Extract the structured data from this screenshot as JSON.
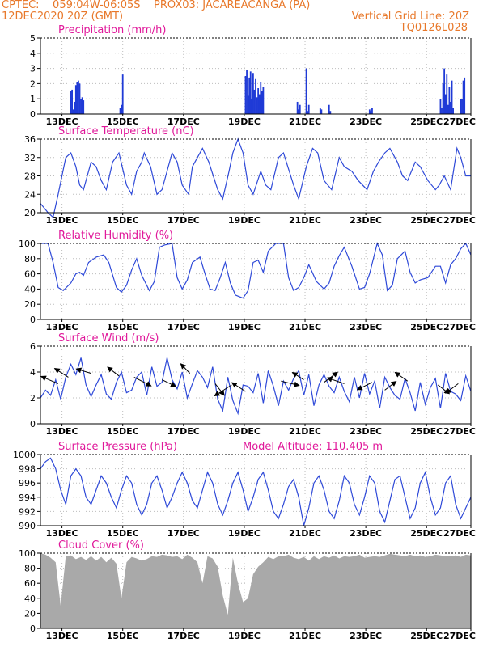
{
  "header": {
    "left1": "CPTEC:    059:04W-06:05S    PROX03: JACAREACANGA (PA)",
    "left2": "12DEC2020 20Z (GMT)",
    "right2": "Vertical Grid Line: 20Z",
    "right3": "TQ0126L028"
  },
  "panel_titles": {
    "precip": "Precipitation (mm/h)",
    "temp": "Surface Temperature (nC)",
    "rh": "Relative Humidity (%)",
    "wind": "Surface Wind (m/s)",
    "pres": "Surface Pressure (hPa)",
    "pres_note": "Model Altitude: 110.405 m",
    "cloud": "Cloud Cover (%)"
  },
  "x_labels": [
    "13DEC",
    "15DEC",
    "17DEC",
    "19DEC",
    "21DEC",
    "23DEC",
    "25DEC",
    "27DEC"
  ],
  "colors": {
    "line": "#2e49d8",
    "bars": "#1f3ad6",
    "cloud": "#a9a9a9",
    "title": "#e0189a",
    "header": "#e8782a"
  },
  "chart_data": [
    {
      "type": "bar",
      "title": "Precipitation (mm/h)",
      "ylim": [
        0,
        5
      ],
      "yticks": [
        0,
        1,
        2,
        3,
        4,
        5
      ],
      "x_unit": "hours since 12DEC2020 20Z",
      "x": [
        24,
        25,
        26,
        27,
        28,
        29,
        30,
        31,
        32,
        33,
        34,
        63,
        64,
        65,
        162,
        163,
        164,
        165,
        166,
        167,
        168,
        169,
        170,
        171,
        172,
        173,
        174,
        175,
        176,
        203,
        204,
        205,
        210,
        211,
        212,
        221,
        222,
        228,
        229,
        260,
        261,
        262,
        316,
        317,
        318,
        319,
        320,
        321,
        322,
        323,
        324,
        325,
        326,
        332,
        333,
        334,
        335
      ],
      "values": [
        1.5,
        1.6,
        0.3,
        0.8,
        1.9,
        2.1,
        2.2,
        2.0,
        1.0,
        1.1,
        0.9,
        0.4,
        0.6,
        2.6,
        2.5,
        2.9,
        1.2,
        2.4,
        2.8,
        1.0,
        2.7,
        1.6,
        2.3,
        1.1,
        1.7,
        1.3,
        2.1,
        1.5,
        1.8,
        0.8,
        0.3,
        0.6,
        3.0,
        0.2,
        0.6,
        0.4,
        0.3,
        0.6,
        0.2,
        0.3,
        0.2,
        0.4,
        1.0,
        0.4,
        2.0,
        3.0,
        1.3,
        2.6,
        0.6,
        1.8,
        0.8,
        2.2,
        0.4,
        1.0,
        1.0,
        2.2,
        2.4
      ]
    },
    {
      "type": "line",
      "title": "Surface Temperature (nC)",
      "ylim": [
        20,
        36
      ],
      "yticks": [
        20,
        24,
        28,
        32,
        36
      ],
      "x_unit": "hours since 12DEC2020 20Z",
      "x": [
        0,
        6,
        10,
        14,
        20,
        24,
        28,
        31,
        34,
        40,
        44,
        48,
        52,
        57,
        62,
        68,
        72,
        76,
        80,
        82,
        87,
        92,
        96,
        101,
        104,
        108,
        112,
        117,
        120,
        124,
        128,
        133,
        140,
        144,
        149,
        152,
        156,
        160,
        164,
        168,
        174,
        178,
        182,
        188,
        192,
        200,
        204,
        210,
        215,
        219,
        224,
        230,
        236,
        240,
        246,
        251,
        258,
        263,
        267,
        272,
        276,
        282,
        286,
        290,
        296,
        300,
        306,
        312,
        315,
        319,
        324,
        329,
        332,
        336,
        340
      ],
      "values": [
        22,
        20,
        19,
        24,
        32,
        33,
        30,
        26,
        25,
        31,
        30,
        27,
        25,
        31,
        33,
        26,
        24,
        29,
        31,
        33,
        30,
        24,
        25,
        30,
        33,
        31,
        26,
        24,
        30,
        32,
        34,
        31,
        25,
        23,
        29,
        33,
        36,
        33,
        26,
        24,
        29,
        26,
        25,
        32,
        33,
        26,
        23,
        30,
        34,
        33,
        27,
        25,
        32,
        30,
        29,
        27,
        25,
        29,
        31,
        33,
        34,
        31,
        28,
        27,
        31,
        30,
        27,
        25,
        26,
        28,
        25,
        34,
        32,
        28,
        28
      ]
    },
    {
      "type": "line",
      "title": "Relative Humidity (%)",
      "ylim": [
        0,
        100
      ],
      "yticks": [
        0,
        20,
        40,
        60,
        80,
        100
      ],
      "x_unit": "hours since 12DEC2020 20Z",
      "x": [
        0,
        6,
        10,
        14,
        18,
        24,
        28,
        31,
        34,
        38,
        44,
        50,
        54,
        60,
        64,
        68,
        72,
        76,
        80,
        86,
        90,
        94,
        98,
        104,
        108,
        112,
        116,
        120,
        126,
        130,
        134,
        138,
        142,
        146,
        150,
        154,
        160,
        164,
        168,
        172,
        176,
        180,
        186,
        192,
        196,
        200,
        204,
        208,
        212,
        218,
        224,
        228,
        232,
        236,
        240,
        246,
        252,
        256,
        260,
        266,
        270,
        274,
        278,
        282,
        288,
        292,
        296,
        300,
        306,
        312,
        316,
        320,
        324,
        328,
        332,
        336,
        340
      ],
      "values": [
        100,
        100,
        75,
        42,
        38,
        48,
        60,
        62,
        58,
        75,
        82,
        85,
        75,
        42,
        36,
        45,
        65,
        80,
        58,
        38,
        50,
        95,
        98,
        100,
        55,
        40,
        52,
        75,
        82,
        60,
        40,
        38,
        55,
        75,
        48,
        32,
        28,
        38,
        75,
        78,
        62,
        90,
        100,
        100,
        55,
        38,
        42,
        55,
        72,
        50,
        40,
        48,
        70,
        84,
        95,
        70,
        40,
        42,
        60,
        100,
        85,
        38,
        45,
        80,
        90,
        62,
        48,
        52,
        55,
        70,
        70,
        48,
        72,
        80,
        93,
        100,
        85
      ]
    },
    {
      "type": "line",
      "title": "Surface Wind (m/s)",
      "ylim": [
        0,
        6
      ],
      "yticks": [
        0,
        2,
        4,
        6
      ],
      "x_unit": "hours since 12DEC2020 20Z",
      "x": [
        0,
        4,
        8,
        12,
        16,
        20,
        24,
        28,
        32,
        36,
        40,
        44,
        48,
        52,
        56,
        60,
        64,
        68,
        72,
        76,
        80,
        84,
        88,
        92,
        96,
        100,
        104,
        108,
        112,
        116,
        120,
        124,
        128,
        132,
        136,
        140,
        144,
        148,
        152,
        156,
        160,
        164,
        168,
        172,
        176,
        180,
        184,
        188,
        192,
        196,
        200,
        204,
        208,
        212,
        216,
        220,
        224,
        228,
        232,
        236,
        240,
        244,
        248,
        252,
        256,
        260,
        264,
        268,
        272,
        276,
        280,
        284,
        288,
        292,
        296,
        300,
        304,
        308,
        312,
        316,
        320,
        324,
        328,
        332,
        336,
        340
      ],
      "values": [
        2.0,
        2.6,
        2.2,
        3.4,
        1.9,
        3.6,
        4.6,
        3.8,
        5.1,
        3.0,
        2.1,
        3.0,
        3.8,
        2.3,
        1.9,
        3.2,
        4.0,
        2.4,
        2.6,
        3.6,
        4.0,
        2.2,
        4.4,
        2.9,
        3.2,
        5.1,
        3.4,
        2.7,
        4.0,
        2.0,
        3.1,
        4.1,
        3.6,
        2.8,
        4.4,
        1.9,
        1.0,
        3.6,
        1.8,
        0.8,
        3.0,
        2.9,
        2.4,
        3.9,
        1.6,
        4.1,
        2.9,
        1.4,
        3.3,
        2.6,
        3.5,
        4.1,
        2.2,
        3.8,
        1.4,
        3.0,
        3.8,
        2.9,
        2.4,
        3.6,
        2.5,
        1.7,
        3.6,
        2.0,
        3.9,
        2.3,
        3.3,
        1.2,
        3.6,
        2.8,
        2.2,
        1.9,
        3.5,
        2.4,
        1.0,
        3.2,
        1.5,
        2.8,
        3.5,
        1.2,
        3.9,
        2.5,
        2.3,
        1.8,
        3.7,
        2.5
      ]
    },
    {
      "type": "line",
      "title": "Surface Pressure (hPa)",
      "ylim": [
        990,
        1000
      ],
      "yticks": [
        990,
        992,
        994,
        996,
        998,
        1000
      ],
      "x_unit": "hours since 12DEC2020 20Z",
      "x": [
        0,
        4,
        8,
        12,
        16,
        20,
        24,
        28,
        32,
        36,
        40,
        44,
        48,
        52,
        56,
        60,
        64,
        68,
        72,
        76,
        80,
        84,
        88,
        92,
        96,
        100,
        104,
        108,
        112,
        116,
        120,
        124,
        128,
        132,
        136,
        140,
        144,
        148,
        152,
        156,
        160,
        164,
        168,
        172,
        176,
        180,
        184,
        188,
        192,
        196,
        200,
        204,
        208,
        212,
        216,
        220,
        224,
        228,
        232,
        236,
        240,
        244,
        248,
        252,
        256,
        260,
        264,
        268,
        272,
        276,
        280,
        284,
        288,
        292,
        296,
        300,
        304,
        308,
        312,
        316,
        320,
        324,
        328,
        332,
        336,
        340
      ],
      "values": [
        998,
        999,
        999.5,
        998,
        995,
        993,
        997,
        998,
        997,
        994,
        993,
        995,
        997,
        996,
        994,
        992.5,
        995,
        997,
        996,
        993,
        991.5,
        993,
        996,
        997,
        995,
        992.5,
        994,
        996,
        997.5,
        996,
        993.5,
        992.5,
        995,
        997.5,
        996,
        993,
        991.5,
        993.5,
        996,
        997.5,
        995,
        992,
        994,
        996.5,
        997.5,
        995,
        992,
        991,
        993,
        995.5,
        996.5,
        994,
        990,
        992.5,
        996,
        997,
        995,
        992,
        991,
        993.5,
        997,
        996,
        993,
        991.5,
        994,
        997,
        996,
        992,
        990.5,
        993.5,
        996.5,
        997,
        994,
        991,
        992.5,
        996,
        997.5,
        994,
        991.5,
        992.5,
        996,
        997,
        993,
        991,
        992.5,
        994
      ]
    },
    {
      "type": "area",
      "title": "Cloud Cover (%)",
      "ylim": [
        0,
        100
      ],
      "yticks": [
        0,
        20,
        40,
        60,
        80,
        100
      ],
      "x_unit": "hours since 12DEC2020 20Z",
      "x": [
        0,
        4,
        8,
        12,
        16,
        20,
        24,
        28,
        32,
        36,
        40,
        44,
        48,
        52,
        56,
        60,
        64,
        68,
        72,
        76,
        80,
        84,
        88,
        92,
        96,
        100,
        104,
        108,
        112,
        116,
        120,
        124,
        128,
        132,
        136,
        140,
        144,
        148,
        152,
        156,
        160,
        164,
        168,
        172,
        176,
        180,
        184,
        188,
        192,
        196,
        200,
        204,
        208,
        212,
        216,
        220,
        224,
        228,
        232,
        236,
        240,
        244,
        248,
        252,
        256,
        260,
        264,
        268,
        272,
        276,
        280,
        284,
        288,
        292,
        296,
        300,
        304,
        308,
        312,
        316,
        320,
        324,
        328,
        332,
        336,
        340
      ],
      "values": [
        100,
        98,
        94,
        88,
        30,
        96,
        97,
        92,
        95,
        91,
        96,
        90,
        95,
        88,
        94,
        86,
        40,
        88,
        95,
        93,
        90,
        92,
        96,
        95,
        98,
        97,
        95,
        96,
        92,
        98,
        94,
        88,
        60,
        96,
        93,
        82,
        44,
        18,
        94,
        60,
        35,
        40,
        72,
        82,
        88,
        95,
        92,
        96,
        96,
        98,
        94,
        92,
        95,
        90,
        96,
        92,
        96,
        94,
        97,
        93,
        96,
        95,
        96,
        98,
        94,
        95,
        96,
        95,
        97,
        99,
        98,
        97,
        96,
        98,
        96,
        97,
        95,
        96,
        98,
        97,
        96,
        96,
        97,
        95,
        98,
        97
      ]
    }
  ]
}
